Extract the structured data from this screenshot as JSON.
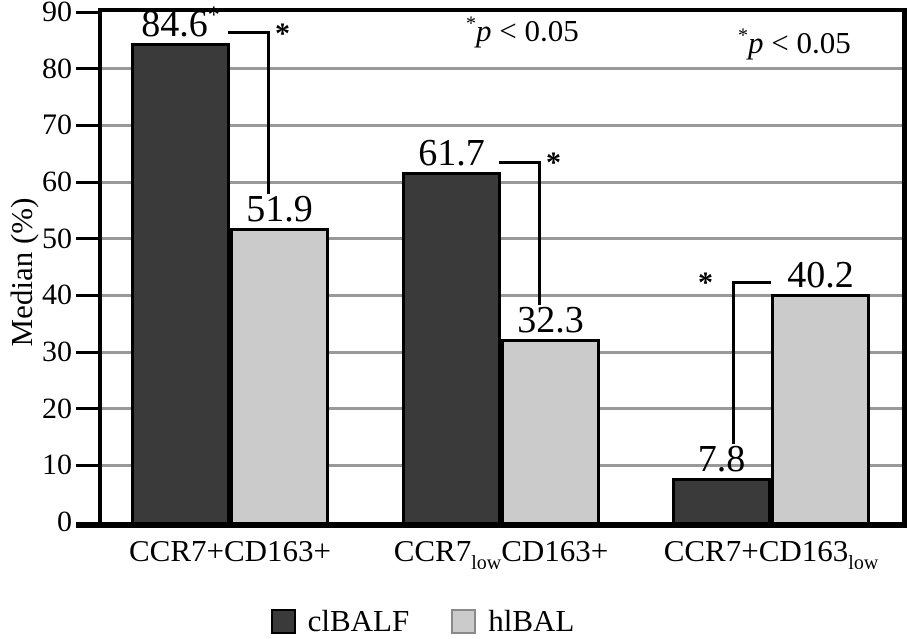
{
  "chart_data": {
    "type": "bar",
    "title": "",
    "ylabel": "Median (%)",
    "ylim": [
      0,
      90
    ],
    "yticks": [
      0,
      10,
      20,
      30,
      40,
      50,
      60,
      70,
      80,
      90
    ],
    "grid": true,
    "gridline_color": "#999999",
    "axis_color": "#000000",
    "categories": [
      {
        "segments": [
          {
            "text": "CCR7+CD163+"
          }
        ]
      },
      {
        "segments": [
          {
            "text": "CCR7"
          },
          {
            "sub": "low"
          },
          {
            "text": "CD163+"
          }
        ]
      },
      {
        "segments": [
          {
            "text": "CCR7+CD163"
          },
          {
            "sub": "low"
          }
        ]
      }
    ],
    "series": [
      {
        "name": "clBALF",
        "color": "#3a3a3a",
        "swatch_border": "#000000",
        "values": [
          84.6,
          61.7,
          7.8
        ],
        "value_labels": [
          {
            "text": "84.6",
            "sup": "*"
          },
          {
            "text": "61.7"
          },
          {
            "text": "7.8"
          }
        ]
      },
      {
        "name": "hlBAL",
        "color": "#cbcbcb",
        "swatch_border": "#8a8a8a",
        "values": [
          51.9,
          32.3,
          40.2
        ],
        "value_labels": [
          {
            "text": "51.9"
          },
          {
            "text": "32.3"
          },
          {
            "text": "40.2"
          }
        ]
      }
    ],
    "significance_brackets": [
      {
        "group": 0,
        "between": [
          "clBALF",
          "hlBAL"
        ],
        "label": "*",
        "corner": "right"
      },
      {
        "group": 1,
        "between": [
          "clBALF",
          "hlBAL"
        ],
        "label": "*",
        "corner": "right"
      },
      {
        "group": 2,
        "between": [
          "clBALF",
          "hlBAL"
        ],
        "label": "*",
        "corner": "left"
      }
    ],
    "annotations": [
      {
        "sup": "*",
        "italic": "p",
        "rest": " < 0.05"
      },
      {
        "sup": "*",
        "italic": "p",
        "rest": " < 0.05"
      }
    ],
    "legend": {
      "position": "bottom",
      "entries": [
        "clBALF",
        "hlBAL"
      ]
    }
  }
}
